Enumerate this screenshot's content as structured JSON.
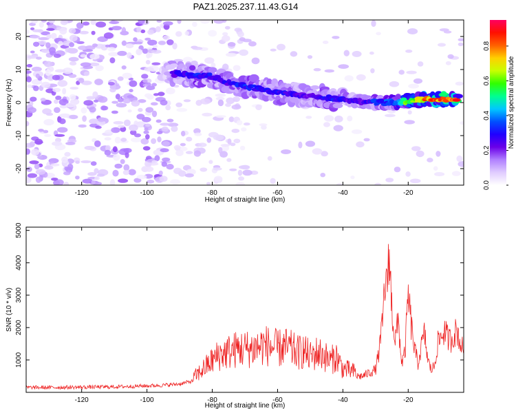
{
  "title": "PAZ1.2025.237.11.43.G14",
  "chart_data": [
    {
      "type": "heatmap",
      "xlabel": "Height of straight line (km)",
      "ylabel": "Frequency (Hz)",
      "xlim": [
        -137,
        -3
      ],
      "ylim": [
        -25,
        25
      ],
      "x_ticks": [
        -120,
        -100,
        -80,
        -60,
        -40,
        -20
      ],
      "y_ticks": [
        -20,
        -10,
        0,
        10,
        20
      ],
      "colorbar": {
        "label": "Normalized spectral amplitude",
        "range": [
          0,
          0.95
        ],
        "ticks": [
          0.0,
          0.2,
          0.4,
          0.6,
          0.8
        ],
        "colors": [
          "#ffffff",
          "#e0ccff",
          "#b080ff",
          "#6a00e8",
          "#2000ff",
          "#0050ff",
          "#00c8ff",
          "#00ff90",
          "#30ff00",
          "#c8ff00",
          "#ffd000",
          "#ff6000",
          "#ff1000",
          "#ff0060"
        ]
      },
      "ridge": {
        "x": [
          -95,
          -90,
          -85,
          -80,
          -75,
          -70,
          -65,
          -60,
          -55,
          -50,
          -45,
          -40,
          -35,
          -30,
          -25,
          -20,
          -15,
          -10,
          -5
        ],
        "frequency": [
          8.0,
          9.0,
          8.0,
          8.0,
          6.0,
          5.0,
          4.0,
          3.0,
          2.5,
          2.0,
          1.5,
          1.0,
          0.5,
          0.0,
          0.0,
          0.5,
          1.0,
          1.0,
          1.0
        ],
        "amplitude": [
          0.15,
          0.3,
          0.35,
          0.3,
          0.3,
          0.35,
          0.3,
          0.3,
          0.3,
          0.25,
          0.35,
          0.3,
          0.25,
          0.35,
          0.4,
          0.65,
          0.85,
          0.9,
          0.9
        ]
      }
    },
    {
      "type": "line",
      "xlabel": "Height of straight line (km)",
      "ylabel": "SNR (10 * v/v)",
      "xlim": [
        -137,
        -3
      ],
      "ylim": [
        0,
        5100
      ],
      "x_ticks": [
        -120,
        -100,
        -80,
        -60,
        -40,
        -20
      ],
      "y_ticks": [
        1000,
        2000,
        3000,
        4000,
        5000
      ],
      "series": [
        {
          "color": "#ee2222",
          "x": [
            -137,
            -130,
            -120,
            -110,
            -100,
            -95,
            -90,
            -86,
            -84,
            -82,
            -80,
            -78,
            -76,
            -74,
            -72,
            -70,
            -68,
            -66,
            -64,
            -62,
            -60,
            -58,
            -56,
            -54,
            -52,
            -50,
            -48,
            -46,
            -44,
            -42,
            -40,
            -38,
            -36,
            -34,
            -32,
            -30,
            -29,
            -28,
            -27,
            -26.5,
            -26,
            -25,
            -24,
            -23,
            -22,
            -21,
            -20,
            -19,
            -18,
            -17,
            -16,
            -15,
            -14,
            -13,
            -12,
            -11,
            -10,
            -9,
            -8,
            -7,
            -6,
            -5,
            -4,
            -3
          ],
          "y": [
            150,
            150,
            160,
            170,
            200,
            220,
            260,
            350,
            500,
            650,
            800,
            950,
            1000,
            1050,
            1100,
            1100,
            1100,
            1150,
            1200,
            1150,
            1100,
            1150,
            1100,
            1000,
            1050,
            900,
            1000,
            950,
            800,
            900,
            600,
            550,
            500,
            500,
            600,
            700,
            1200,
            2000,
            3500,
            3100,
            4500,
            2600,
            1600,
            2200,
            900,
            1200,
            3000,
            2000,
            1300,
            900,
            1400,
            1800,
            1000,
            700,
            800,
            1500,
            1700,
            1900,
            1700,
            1600,
            1800,
            1900,
            1500,
            1300
          ]
        }
      ]
    }
  ]
}
